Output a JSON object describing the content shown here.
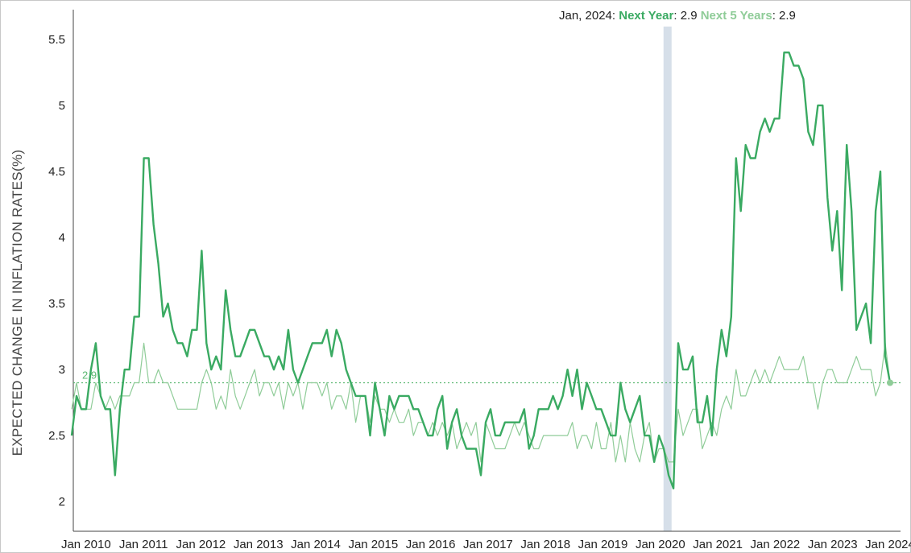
{
  "chart_data": {
    "type": "line",
    "title": "",
    "xlabel": "",
    "ylabel": "EXPECTED CHANGE IN INFLATION RATES(%)",
    "ylim": [
      1.8,
      5.7
    ],
    "yticks": [
      "2",
      "2.5",
      "3",
      "3.5",
      "4",
      "4.5",
      "5",
      "5.5"
    ],
    "xticks": [
      "Jan 2010",
      "Jan 2011",
      "Jan 2012",
      "Jan 2013",
      "Jan 2014",
      "Jan 2015",
      "Jan 2016",
      "Jan 2017",
      "Jan 2018",
      "Jan 2019",
      "Jan 2020",
      "Jan 2021",
      "Jan 2022",
      "Jan 2023",
      "Jan 2024"
    ],
    "x_start": "2009-10",
    "x_end": "2024-01",
    "reference_line": {
      "value": 2.9,
      "label": "2.9"
    },
    "highlight_band": {
      "start": "2020-02",
      "end": "2020-03",
      "color": "#d6dfe9"
    },
    "colors": {
      "next_year": "#3aaa62",
      "next_5_years": "#8fcc98",
      "reference": "#5cb872"
    },
    "tooltip": {
      "date": "Jan, 2024",
      "next_year_label": "Next Year",
      "next_year_value": "2.9",
      "next_5_years_label": "Next 5 Years",
      "next_5_years_value": "2.9"
    },
    "series": [
      {
        "name": "Next Year",
        "values": [
          2.5,
          2.8,
          2.7,
          2.7,
          3.0,
          3.2,
          2.8,
          2.7,
          2.7,
          2.2,
          2.7,
          3.0,
          3.0,
          3.4,
          3.4,
          4.6,
          4.6,
          4.1,
          3.8,
          3.4,
          3.5,
          3.3,
          3.2,
          3.2,
          3.1,
          3.3,
          3.3,
          3.9,
          3.2,
          3.0,
          3.1,
          3.0,
          3.6,
          3.3,
          3.1,
          3.1,
          3.2,
          3.3,
          3.3,
          3.2,
          3.1,
          3.1,
          3.0,
          3.1,
          3.0,
          3.3,
          3.0,
          2.9,
          3.0,
          3.1,
          3.2,
          3.2,
          3.2,
          3.3,
          3.1,
          3.3,
          3.2,
          3.0,
          2.9,
          2.8,
          2.8,
          2.8,
          2.5,
          2.9,
          2.7,
          2.5,
          2.8,
          2.7,
          2.8,
          2.8,
          2.8,
          2.7,
          2.7,
          2.6,
          2.5,
          2.5,
          2.7,
          2.8,
          2.4,
          2.6,
          2.7,
          2.5,
          2.4,
          2.4,
          2.4,
          2.2,
          2.6,
          2.7,
          2.5,
          2.5,
          2.6,
          2.6,
          2.6,
          2.6,
          2.7,
          2.4,
          2.5,
          2.7,
          2.7,
          2.7,
          2.8,
          2.7,
          2.8,
          3.0,
          2.8,
          3.0,
          2.7,
          2.9,
          2.8,
          2.7,
          2.7,
          2.6,
          2.5,
          2.5,
          2.9,
          2.7,
          2.6,
          2.7,
          2.8,
          2.5,
          2.5,
          2.3,
          2.5,
          2.4,
          2.2,
          2.1,
          3.2,
          3.0,
          3.0,
          3.1,
          2.6,
          2.6,
          2.8,
          2.5,
          3.0,
          3.3,
          3.1,
          3.4,
          4.6,
          4.2,
          4.7,
          4.6,
          4.6,
          4.8,
          4.9,
          4.8,
          4.9,
          4.9,
          5.4,
          5.4,
          5.3,
          5.3,
          5.2,
          4.8,
          4.7,
          5.0,
          5.0,
          4.3,
          3.9,
          4.2,
          3.6,
          4.7,
          4.2,
          3.3,
          3.4,
          3.5,
          3.2,
          4.2,
          4.5,
          3.1,
          2.9
        ]
      },
      {
        "name": "Next 5 Years",
        "values": [
          2.7,
          2.9,
          2.7,
          2.7,
          2.7,
          2.9,
          2.8,
          2.7,
          2.8,
          2.7,
          2.8,
          2.8,
          2.8,
          2.9,
          2.9,
          3.2,
          2.9,
          2.9,
          3.0,
          2.9,
          2.9,
          2.8,
          2.7,
          2.7,
          2.7,
          2.7,
          2.7,
          2.9,
          3.0,
          2.9,
          2.7,
          2.8,
          2.7,
          3.0,
          2.8,
          2.7,
          2.8,
          2.9,
          3.0,
          2.8,
          2.9,
          2.9,
          2.8,
          2.9,
          2.7,
          2.9,
          2.8,
          2.9,
          2.7,
          2.9,
          2.9,
          2.9,
          2.8,
          2.9,
          2.7,
          2.8,
          2.8,
          2.7,
          2.9,
          2.6,
          2.8,
          2.8,
          2.6,
          2.8,
          2.7,
          2.7,
          2.6,
          2.7,
          2.6,
          2.6,
          2.7,
          2.5,
          2.6,
          2.6,
          2.5,
          2.6,
          2.5,
          2.6,
          2.5,
          2.6,
          2.4,
          2.5,
          2.6,
          2.5,
          2.6,
          2.3,
          2.6,
          2.5,
          2.4,
          2.4,
          2.4,
          2.5,
          2.6,
          2.5,
          2.6,
          2.5,
          2.4,
          2.4,
          2.5,
          2.5,
          2.5,
          2.5,
          2.5,
          2.5,
          2.6,
          2.4,
          2.5,
          2.5,
          2.4,
          2.6,
          2.4,
          2.4,
          2.6,
          2.3,
          2.5,
          2.3,
          2.6,
          2.4,
          2.3,
          2.5,
          2.6,
          2.3,
          2.4,
          2.4,
          2.3,
          2.3,
          2.7,
          2.5,
          2.6,
          2.7,
          2.7,
          2.4,
          2.5,
          2.6,
          2.5,
          2.7,
          2.8,
          2.7,
          3.0,
          2.8,
          2.8,
          2.9,
          3.0,
          2.9,
          3.0,
          2.9,
          3.0,
          3.1,
          3.0,
          3.0,
          3.0,
          3.0,
          3.1,
          2.9,
          2.9,
          2.7,
          2.9,
          3.0,
          3.0,
          2.9,
          2.9,
          2.9,
          3.0,
          3.1,
          3.0,
          3.0,
          3.0,
          2.8,
          2.9,
          3.2,
          2.9,
          2.9
        ]
      }
    ]
  }
}
